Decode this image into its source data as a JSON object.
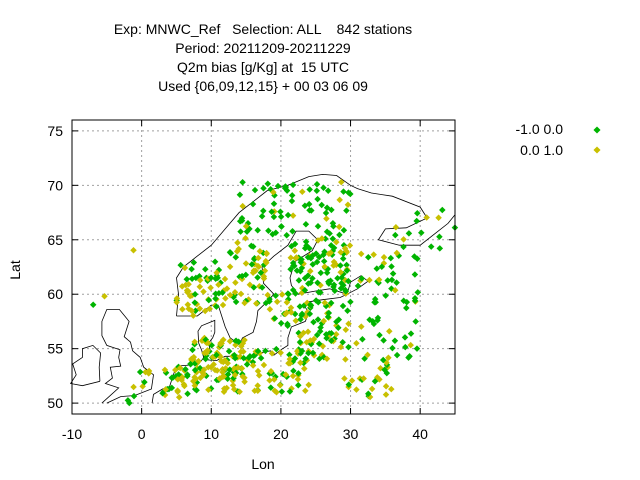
{
  "chart_data": {
    "type": "scatter",
    "title_lines": [
      "Exp: MNWC_Ref   Selection: ALL    842 stations",
      "Period: 20211209-20211229",
      "Q2m bias [g/Kg] at  15 UTC",
      "Used {06,09,12,15} + 00 03 06 09"
    ],
    "xlabel": "Lon",
    "ylabel": "Lat",
    "xlim": [
      -10,
      45
    ],
    "ylim": [
      49,
      76
    ],
    "xticks": [
      -10,
      0,
      10,
      20,
      30,
      40
    ],
    "yticks": [
      50,
      55,
      60,
      65,
      70,
      75
    ],
    "grid": true,
    "legend_position": "top-right outside",
    "series": [
      {
        "name": "-1.0 0.0",
        "color": "#00b400"
      },
      {
        "name": "0.0 1.0",
        "color": "#c8c000"
      }
    ]
  }
}
